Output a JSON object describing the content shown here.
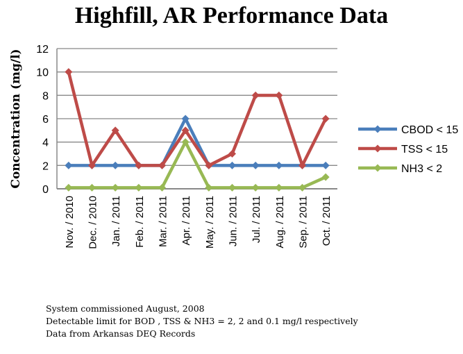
{
  "chart_data": {
    "type": "line",
    "title": "Highfill, AR Performance Data",
    "xlabel": "",
    "ylabel": "Concentration (mg/l)",
    "ylim": [
      0,
      12
    ],
    "yticks": [
      "0",
      "2",
      "4",
      "6",
      "8",
      "10",
      "12"
    ],
    "grid": true,
    "legend_position": "right",
    "categories": [
      "Nov. / 2010",
      "Dec. / 2010",
      "Jan. / 2011",
      "Feb. / 2011",
      "Mar. / 2011",
      "Apr. / 2011",
      "May. / 2011",
      "Jun. / 2011",
      "Jul. / 2011",
      "Aug. / 2011",
      "Sep. / 2011",
      "Oct. / 2011"
    ],
    "series": [
      {
        "name": "CBOD < 15",
        "color": "#4a7ebb",
        "values": [
          2,
          2,
          2,
          2,
          2,
          6,
          2,
          2,
          2,
          2,
          2,
          2
        ]
      },
      {
        "name": "TSS < 15",
        "color": "#be4b48",
        "values": [
          10,
          2,
          5,
          2,
          2,
          5,
          2,
          3,
          8,
          8,
          2,
          6
        ]
      },
      {
        "name": "NH3 < 2",
        "color": "#98b954",
        "values": [
          0.1,
          0.1,
          0.1,
          0.1,
          0.1,
          4,
          0.1,
          0.1,
          0.1,
          0.1,
          0.1,
          1
        ]
      }
    ]
  },
  "notes": [
    "System commissioned August, 2008",
    "Detectable limit for BOD , TSS & NH3 = 2, 2 and 0.1 mg/l respectively",
    "Data from Arkansas DEQ Records"
  ]
}
